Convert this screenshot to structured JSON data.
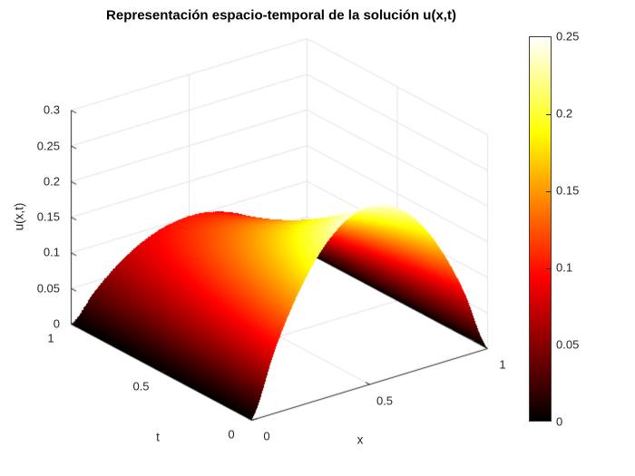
{
  "figure": {
    "title": "Representación espacio-temporal de la solución u(x,t)",
    "background": "#ffffff"
  },
  "chart_data": {
    "type": "surface",
    "title": "Representación espacio-temporal de la solución u(x,t)",
    "xlabel": "x",
    "ylabel": "t",
    "zlabel": "u(x,t)",
    "xlim": [
      0,
      1
    ],
    "tlim": [
      0,
      1
    ],
    "zlim": [
      0,
      0.3
    ],
    "clim": [
      0,
      0.25
    ],
    "grid": true,
    "colormap": "hot",
    "x_ticks": {
      "labels": [
        "0",
        "0.5",
        "1"
      ],
      "values": [
        0,
        0.5,
        1
      ]
    },
    "t_ticks": {
      "labels": [
        "0",
        "0.5",
        "1"
      ],
      "values": [
        0,
        0.5,
        1
      ]
    },
    "z_ticks": {
      "labels": [
        "0",
        "0.05",
        "0.1",
        "0.15",
        "0.2",
        "0.25",
        "0.3"
      ],
      "values": [
        0,
        0.05,
        0.1,
        0.15,
        0.2,
        0.25,
        0.3
      ]
    },
    "colorbar": {
      "min": 0,
      "max": 0.25,
      "ticks": {
        "labels": [
          "0",
          "0.05",
          "0.1",
          "0.15",
          "0.2",
          "0.25"
        ],
        "values": [
          0,
          0.05,
          0.1,
          0.15,
          0.2,
          0.25
        ]
      }
    },
    "x": [
      0,
      0.1,
      0.2,
      0.3,
      0.4,
      0.5,
      0.6,
      0.7,
      0.8,
      0.9,
      1
    ],
    "t": [
      0,
      0.1,
      0.2,
      0.3,
      0.4,
      0.5,
      0.6,
      0.7,
      0.8,
      0.9,
      1
    ],
    "u": [
      [
        0,
        0.09,
        0.16,
        0.21,
        0.24,
        0.25,
        0.24,
        0.21,
        0.16,
        0.09,
        0
      ],
      [
        0,
        0.0823,
        0.1462,
        0.1919,
        0.2193,
        0.2285,
        0.2193,
        0.1919,
        0.1462,
        0.0823,
        0
      ],
      [
        0,
        0.0752,
        0.1336,
        0.1754,
        0.2005,
        0.2088,
        0.2005,
        0.1754,
        0.1336,
        0.0752,
        0
      ],
      [
        0,
        0.0687,
        0.1221,
        0.1603,
        0.1832,
        0.1909,
        0.1832,
        0.1603,
        0.1221,
        0.0687,
        0
      ],
      [
        0,
        0.0628,
        0.1116,
        0.1465,
        0.1674,
        0.1744,
        0.1674,
        0.1465,
        0.1116,
        0.0628,
        0
      ],
      [
        0,
        0.0574,
        0.102,
        0.1339,
        0.153,
        0.1594,
        0.153,
        0.1339,
        0.102,
        0.0574,
        0
      ],
      [
        0,
        0.0524,
        0.0932,
        0.1224,
        0.1398,
        0.1457,
        0.1398,
        0.1224,
        0.0932,
        0.0524,
        0
      ],
      [
        0,
        0.0479,
        0.0852,
        0.1118,
        0.1278,
        0.1332,
        0.1278,
        0.1118,
        0.0852,
        0.0479,
        0
      ],
      [
        0,
        0.0438,
        0.0779,
        0.1022,
        0.1168,
        0.1217,
        0.1168,
        0.1022,
        0.0779,
        0.0438,
        0
      ],
      [
        0,
        0.04,
        0.0712,
        0.0934,
        0.1068,
        0.1112,
        0.1068,
        0.0934,
        0.0712,
        0.04,
        0
      ],
      [
        0,
        0.0366,
        0.0651,
        0.0854,
        0.0976,
        0.1017,
        0.0976,
        0.0854,
        0.0651,
        0.0366,
        0
      ]
    ],
    "colors": {
      "axis": "#262626",
      "grid_line": "#e3e3e3",
      "surface_low": "#000000",
      "surface_mid": "#ff0000",
      "surface_high": "#ffffff"
    }
  }
}
